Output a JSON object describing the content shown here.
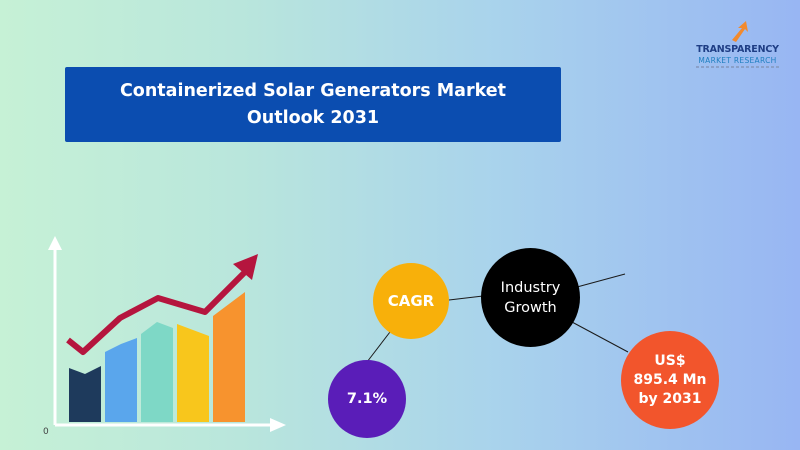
{
  "title": "Containerized Solar Generators Market Outlook 2031",
  "logo": {
    "name": "TRANSPARENCY",
    "sub": "MARKET RESEARCH"
  },
  "illustration": {
    "axis_zero": "0",
    "bar_colors": [
      "#1e3a5c",
      "#5aa6ec",
      "#7ed8c6",
      "#f8c61c",
      "#f7932e"
    ],
    "trend_color": "#b5153e"
  },
  "bubbles": {
    "cagr": "CAGR",
    "industry_growth": "Industry Growth",
    "rate": "7.1%",
    "value": "US$ 895.4 Mn by 2031"
  },
  "colors": {
    "title_bg": "#0b4db0",
    "cagr": "#f8b00a",
    "industry_growth": "#000000",
    "rate": "#5a1db8",
    "value": "#f2552c"
  }
}
